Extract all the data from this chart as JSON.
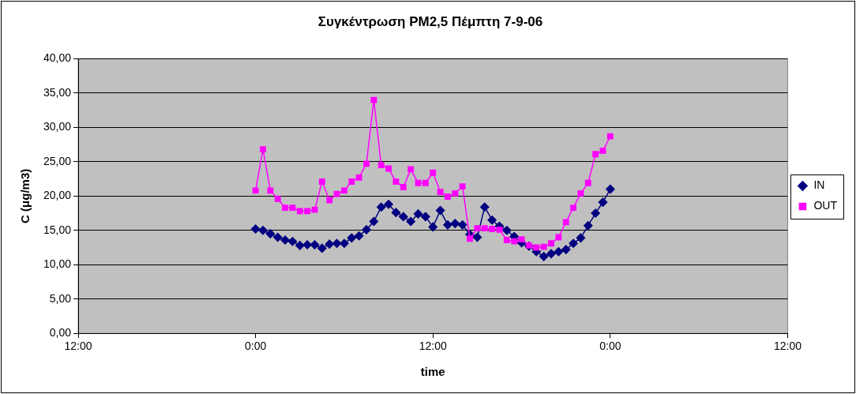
{
  "chart_data": {
    "type": "line",
    "title": "Συγκέντρωση PM2,5 Πέμπτη 7-9-06",
    "xlabel": "time",
    "ylabel": "C (μg/m3)",
    "x": [
      "--09-07T00:00",
      "--09-07T00:30",
      "--09-07T01:00",
      "--09-07T01:30",
      "--09-07T02:00",
      "--09-07T02:30",
      "--09-07T03:00",
      "--09-07T03:30",
      "--09-07T04:00",
      "--09-07T04:30",
      "--09-07T05:00",
      "--09-07T05:30",
      "--09-07T06:00",
      "--09-07T06:30",
      "--09-07T07:00",
      "--09-07T07:30",
      "--09-07T08:00",
      "--09-07T08:30",
      "--09-07T09:00",
      "--09-07T09:30",
      "--09-07T10:00",
      "--09-07T10:30",
      "--09-07T11:00",
      "--09-07T11:30",
      "--09-07T12:00",
      "--09-07T12:30",
      "--09-07T13:00",
      "--09-07T13:30",
      "--09-07T14:00",
      "--09-07T14:30",
      "--09-07T15:00",
      "--09-07T15:30",
      "--09-07T16:00",
      "--09-07T16:30",
      "--09-07T17:00",
      "--09-07T17:30",
      "--09-07T18:00",
      "--09-07T18:30",
      "--09-07T19:00",
      "--09-07T19:30",
      "--09-07T20:00",
      "--09-07T20:30",
      "--09-07T21:00",
      "--09-07T21:30",
      "--09-07T22:00",
      "--09-07T22:30",
      "--09-07T23:00",
      "--09-07T23:30",
      "--09-08T00:00"
    ],
    "series": [
      {
        "name": "IN",
        "color": "#000080",
        "marker": "diamond",
        "values": [
          15.2,
          15.0,
          14.5,
          14.0,
          13.6,
          13.4,
          12.8,
          12.9,
          12.9,
          12.4,
          13.0,
          13.1,
          13.1,
          13.9,
          14.2,
          15.1,
          16.3,
          18.4,
          18.8,
          17.6,
          17.0,
          16.3,
          17.4,
          17.0,
          15.5,
          17.9,
          15.8,
          16.0,
          15.8,
          14.4,
          14.0,
          18.4,
          16.5,
          15.6,
          15.0,
          14.1,
          13.2,
          12.7,
          11.9,
          11.2,
          11.6,
          11.9,
          12.2,
          13.1,
          13.9,
          15.7,
          17.5,
          19.1,
          21.0
        ]
      },
      {
        "name": "OUT",
        "color": "#ff00ff",
        "marker": "square",
        "values": [
          20.8,
          26.8,
          20.8,
          19.6,
          18.3,
          18.3,
          17.8,
          17.8,
          18.0,
          22.1,
          19.4,
          20.3,
          20.8,
          22.1,
          22.7,
          24.7,
          34.0,
          24.5,
          24.0,
          22.1,
          21.3,
          23.9,
          21.9,
          21.9,
          23.4,
          20.6,
          19.9,
          20.4,
          21.4,
          13.8,
          15.3,
          15.3,
          15.2,
          15.1,
          13.6,
          13.4,
          13.7,
          12.8,
          12.5,
          12.6,
          13.1,
          14.0,
          16.2,
          18.3,
          20.4,
          21.9,
          26.1,
          26.6,
          28.7
        ]
      }
    ],
    "xlim": [
      "--09-06T12:00",
      "--09-08T12:00"
    ],
    "xticks": [
      {
        "value": "--09-06T12:00",
        "label": "12:00"
      },
      {
        "value": "--09-07T00:00",
        "label": "0:00"
      },
      {
        "value": "--09-07T12:00",
        "label": "12:00"
      },
      {
        "value": "--09-08T00:00",
        "label": "0:00"
      },
      {
        "value": "--09-08T12:00",
        "label": "12:00"
      }
    ],
    "ylim": [
      0,
      40
    ],
    "yticks": [
      {
        "value": 0,
        "label": "0,00"
      },
      {
        "value": 5,
        "label": "5,00"
      },
      {
        "value": 10,
        "label": "10,00"
      },
      {
        "value": 15,
        "label": "15,00"
      },
      {
        "value": 20,
        "label": "20,00"
      },
      {
        "value": 25,
        "label": "25,00"
      },
      {
        "value": 30,
        "label": "30,00"
      },
      {
        "value": 35,
        "label": "35,00"
      },
      {
        "value": 40,
        "label": "40,00"
      }
    ],
    "grid": "y",
    "legend": "right",
    "line_style": "solid"
  }
}
